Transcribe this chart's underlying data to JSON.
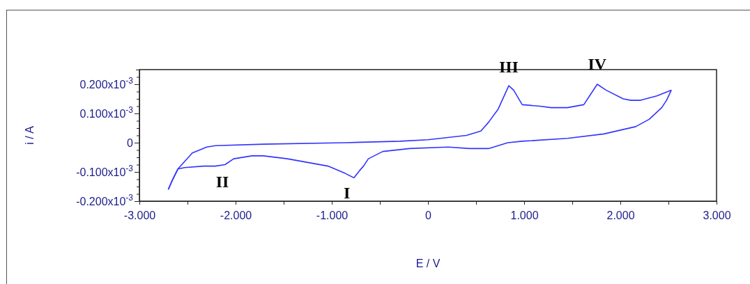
{
  "chart_data": {
    "type": "line",
    "xlabel": "E / V",
    "ylabel": "i / A",
    "xlim": [
      -3,
      3
    ],
    "ylim": [
      -0.0002,
      0.00025
    ],
    "xticks": [
      {
        "value": -3,
        "label": "-3.000"
      },
      {
        "value": -2.5,
        "label": null
      },
      {
        "value": -2,
        "label": "-2.000"
      },
      {
        "value": -1.5,
        "label": null
      },
      {
        "value": -1,
        "label": "-1.000"
      },
      {
        "value": -0.5,
        "label": null
      },
      0,
      {
        "value": 0.5,
        "label": null
      },
      {
        "value": 1,
        "label": "1.000"
      },
      {
        "value": 1.5,
        "label": null
      },
      {
        "value": 2,
        "label": "2.000"
      },
      {
        "value": 2.5,
        "label": null
      },
      {
        "value": 3,
        "label": "3.000"
      }
    ],
    "yticks": [
      {
        "value": -0.0002,
        "label": "-0.200x10$^{-3}$"
      },
      {
        "value": -0.000175,
        "label": null
      },
      {
        "value": -0.00015,
        "label": null
      },
      {
        "value": -0.000125,
        "label": null
      },
      {
        "value": -0.0001,
        "label": "-0.100x10$^{-3}$"
      },
      {
        "value": -7.5e-05,
        "label": null
      },
      {
        "value": -5e-05,
        "label": null
      },
      {
        "value": -2.5e-05,
        "label": null
      },
      0,
      {
        "value": 2.5e-05,
        "label": null
      },
      {
        "value": 5e-05,
        "label": null
      },
      {
        "value": 7.5e-05,
        "label": null
      },
      {
        "value": 0.0001,
        "label": "0.100x10$^{-3}$"
      },
      {
        "value": 0.000125,
        "label": null
      },
      {
        "value": 0.00015,
        "label": null
      },
      {
        "value": 0.000175,
        "label": null
      },
      {
        "value": 0.0002,
        "label": "0.200x10$^{-3}$"
      },
      {
        "value": 0.000225,
        "label": null
      }
    ],
    "grid": false,
    "marker": "none",
    "line_style": "solid",
    "series": [
      {
        "color": "#3333ff",
        "x": [
          -2.7,
          -2.66,
          -2.6,
          -2.45,
          -2.3,
          -2.21,
          -1.71,
          -0.86,
          -0.29,
          0,
          0.4,
          0.55,
          0.63,
          0.73,
          0.84,
          0.89,
          0.98,
          1.16,
          1.28,
          1.45,
          1.62,
          1.68,
          1.76,
          1.85,
          2.03,
          2.11,
          2.21,
          2.38,
          2.53
        ],
        "values": [
          -0.00016,
          -0.00013,
          -9e-05,
          -3.5e-05,
          -1.5e-05,
          -1e-05,
          -5e-06,
          0,
          5e-06,
          1e-05,
          2.5e-05,
          4e-05,
          7e-05,
          0.000115,
          0.000195,
          0.00018,
          0.00013,
          0.000125,
          0.00012,
          0.00012,
          0.00013,
          0.00016,
          0.0002,
          0.00018,
          0.00015,
          0.000145,
          0.000145,
          0.00016,
          0.00018
        ]
      },
      {
        "color": "#3333ff",
        "x": [
          -2.7,
          -2.66,
          -2.6,
          -2.53,
          -2.33,
          -2.21,
          -2.11,
          -2.02,
          -1.83,
          -1.71,
          -1.46,
          -1.04,
          -0.86,
          -0.77,
          -0.71,
          -0.67,
          -0.62,
          -0.47,
          -0.19,
          0.21,
          0.43,
          0.63,
          0.83,
          0.98,
          1.45,
          1.83,
          2.16,
          2.3,
          2.43,
          2.48,
          2.53
        ],
        "values": [
          -0.00016,
          -0.00013,
          -9e-05,
          -8.5e-05,
          -8e-05,
          -8e-05,
          -7.5e-05,
          -5.5e-05,
          -4.5e-05,
          -4.5e-05,
          -5.5e-05,
          -8e-05,
          -0.000105,
          -0.00012,
          -9.5e-05,
          -8e-05,
          -5.5e-05,
          -3e-05,
          -2e-05,
          -1.5e-05,
          -2e-05,
          -2e-05,
          0,
          5e-06,
          1.5e-05,
          3e-05,
          5.5e-05,
          8e-05,
          0.00012,
          0.000145,
          0.00018
        ]
      }
    ],
    "annotations": [
      {
        "text": "I",
        "x": -0.77,
        "y": -0.00012
      },
      {
        "text": "II",
        "x": -2.21,
        "y": -8.1e-05
      },
      {
        "text": "III",
        "x": 0.84,
        "y": 0.000193
      },
      {
        "text": "IV",
        "x": 1.76,
        "y": 0.000202
      }
    ]
  }
}
